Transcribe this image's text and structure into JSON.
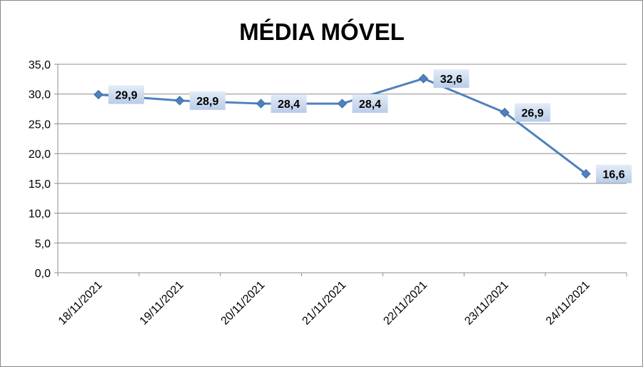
{
  "chart_data": {
    "type": "line",
    "title": "MÉDIA MÓVEL",
    "categories": [
      "18/11/2021",
      "19/11/2021",
      "20/11/2021",
      "21/11/2021",
      "22/11/2021",
      "23/11/2021",
      "24/11/2021"
    ],
    "series": [
      {
        "values": [
          29.9,
          28.9,
          28.4,
          28.4,
          32.6,
          26.9,
          16.6
        ],
        "data_labels": [
          "29,9",
          "28,9",
          "28,4",
          "28,4",
          "32,6",
          "26,9",
          "16,6"
        ]
      }
    ],
    "ylim": [
      0,
      35
    ],
    "yticks": [
      0,
      5,
      10,
      15,
      20,
      25,
      30,
      35
    ],
    "ytick_labels": [
      "0,0",
      "5,0",
      "10,0",
      "15,0",
      "20,0",
      "25,0",
      "30,0",
      "35,0"
    ],
    "grid": true,
    "legend": "none",
    "colors": {
      "line": "#4F81BD",
      "marker": "#4F81BD",
      "label_box": "#C5D5EC",
      "grid": "#8C8C8C"
    }
  }
}
